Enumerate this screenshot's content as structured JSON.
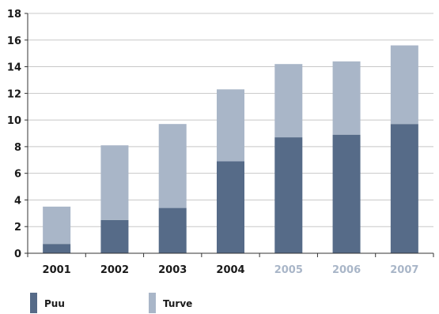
{
  "chart_data": {
    "type": "bar",
    "stacked": true,
    "categories": [
      "2001",
      "2002",
      "2003",
      "2004",
      "2005",
      "2006",
      "2007"
    ],
    "category_colors": [
      "#1a1a1a",
      "#1a1a1a",
      "#1a1a1a",
      "#1a1a1a",
      "#a9b6c8",
      "#a9b6c8",
      "#a9b6c8"
    ],
    "series": [
      {
        "name": "Puu",
        "color": "#566b88",
        "values": [
          0.7,
          2.5,
          3.4,
          6.9,
          8.7,
          8.9,
          9.7
        ]
      },
      {
        "name": "Turve",
        "color": "#a9b6c8",
        "values": [
          2.8,
          5.6,
          6.3,
          5.4,
          5.5,
          5.5,
          5.9
        ]
      }
    ],
    "ylim": [
      0,
      18
    ],
    "yticks": [
      0,
      2,
      4,
      6,
      8,
      10,
      12,
      14,
      16,
      18
    ],
    "grid": true,
    "legend_position": "bottom-left"
  }
}
